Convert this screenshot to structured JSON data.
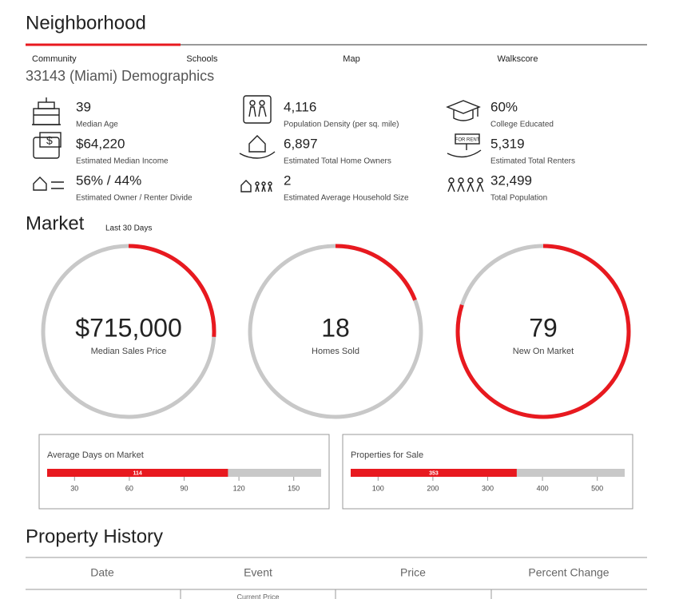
{
  "header": {
    "title": "Neighborhood",
    "tabs": [
      "Community",
      "Schools",
      "Map",
      "Walkscore"
    ]
  },
  "demographics": {
    "title": "33143 (Miami) Demographics",
    "stats": [
      {
        "value": "39",
        "label": "Median Age"
      },
      {
        "value": "4,116",
        "label": "Population Density (per sq. mile)"
      },
      {
        "value": "60%",
        "label": "College Educated"
      },
      {
        "value": "$64,220",
        "label": "Estimated Median Income"
      },
      {
        "value": "6,897",
        "label": "Estimated Total Home Owners"
      },
      {
        "value": "5,319",
        "label": "Estimated Total Renters"
      },
      {
        "value": "56% / 44%",
        "label": "Estimated Owner / Renter Divide"
      },
      {
        "value": "2",
        "label": "Estimated Average Household Size"
      },
      {
        "value": "32,499",
        "label": "Total Population"
      }
    ]
  },
  "market": {
    "title": "Market",
    "subtitle": "Last 30 Days",
    "rings": [
      {
        "value": "$715,000",
        "label": "Median Sales Price",
        "progress": 26
      },
      {
        "value": "18",
        "label": "Homes Sold",
        "progress": 19
      },
      {
        "value": "79",
        "label": "New On Market",
        "progress": 80
      }
    ],
    "gauges": [
      {
        "title": "Average Days on Market",
        "value": 114,
        "xlim": [
          15,
          165
        ],
        "xticks": [
          30,
          60,
          90,
          120,
          150
        ]
      },
      {
        "title": "Properties for Sale",
        "value": 353,
        "xlim": [
          50,
          550
        ],
        "xticks": [
          100,
          200,
          300,
          400,
          500
        ]
      }
    ]
  },
  "history": {
    "title": "Property History",
    "columns": [
      "Date",
      "Event",
      "Price",
      "Percent Change"
    ],
    "rows": [
      {
        "event": "Current Price"
      }
    ]
  }
}
